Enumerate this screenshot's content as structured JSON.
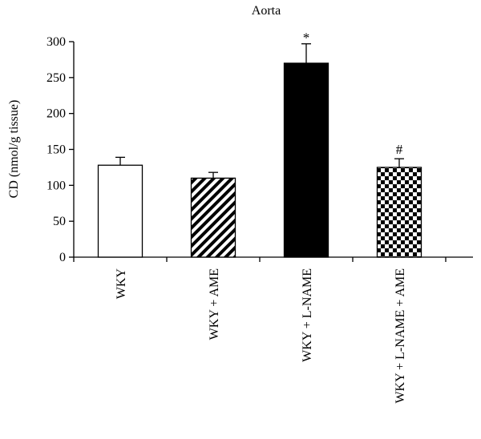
{
  "chart_data": {
    "type": "bar",
    "title": "Aorta",
    "xlabel": "",
    "ylabel": "CD (nmol/g tissue)",
    "ylim": [
      0,
      300
    ],
    "yticks": [
      0,
      50,
      100,
      150,
      200,
      250,
      300
    ],
    "categories": [
      "WKY",
      "WKY + AME",
      "WKY + L-NAME",
      "WKY + L-NAME + AME"
    ],
    "values": [
      128,
      110,
      270,
      125
    ],
    "errors": [
      11,
      8,
      27,
      12
    ],
    "annotations": [
      "",
      "",
      "*",
      "#"
    ],
    "fills": [
      "white",
      "diagonal-stripes",
      "black",
      "checkerboard"
    ],
    "grid": false,
    "legend": "none"
  }
}
